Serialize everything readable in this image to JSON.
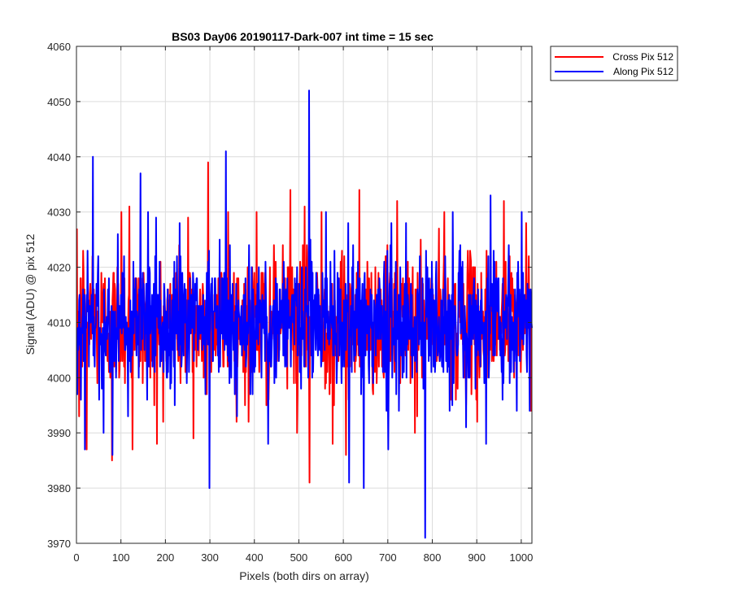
{
  "chart_data": {
    "type": "line",
    "title": "BS03 Day06 20190117-Dark-007 int time = 15 sec",
    "xlabel": "Pixels (both dirs on array)",
    "ylabel": "Signal (ADU) @ pix 512",
    "xlim": [
      0,
      1024
    ],
    "ylim": [
      3970,
      4060
    ],
    "xticks": [
      0,
      100,
      200,
      300,
      400,
      500,
      600,
      700,
      800,
      900,
      1000
    ],
    "yticks": [
      3970,
      3980,
      3990,
      4000,
      4010,
      4020,
      4030,
      4040,
      4050,
      4060
    ],
    "grid": true,
    "legend_position": "outside-top-right",
    "series": [
      {
        "name": "Cross Pix 512",
        "color": "#ff0000",
        "mean": 4010,
        "stddev": 6,
        "points": 1024,
        "extremes": [
          {
            "x": 5,
            "y": 3993
          },
          {
            "x": 14,
            "y": 4023
          },
          {
            "x": 22,
            "y": 3987
          },
          {
            "x": 35,
            "y": 4022
          },
          {
            "x": 79,
            "y": 3985
          },
          {
            "x": 100,
            "y": 4030
          },
          {
            "x": 118,
            "y": 4031
          },
          {
            "x": 125,
            "y": 3987
          },
          {
            "x": 180,
            "y": 3988
          },
          {
            "x": 250,
            "y": 4029
          },
          {
            "x": 262,
            "y": 3989
          },
          {
            "x": 295,
            "y": 4039
          },
          {
            "x": 340,
            "y": 4030
          },
          {
            "x": 386,
            "y": 3992
          },
          {
            "x": 404,
            "y": 4030
          },
          {
            "x": 426,
            "y": 3995
          },
          {
            "x": 480,
            "y": 4034
          },
          {
            "x": 495,
            "y": 3990
          },
          {
            "x": 512,
            "y": 4031
          },
          {
            "x": 523,
            "y": 3981
          },
          {
            "x": 550,
            "y": 4030
          },
          {
            "x": 575,
            "y": 3988
          },
          {
            "x": 605,
            "y": 3986
          },
          {
            "x": 635,
            "y": 4034
          },
          {
            "x": 720,
            "y": 4032
          },
          {
            "x": 760,
            "y": 3990
          },
          {
            "x": 826,
            "y": 4030
          },
          {
            "x": 900,
            "y": 3992
          },
          {
            "x": 960,
            "y": 4032
          },
          {
            "x": 1010,
            "y": 4028
          }
        ]
      },
      {
        "name": "Along Pix 512",
        "color": "#0000ff",
        "mean": 4010,
        "stddev": 6,
        "points": 1024,
        "extremes": [
          {
            "x": 36,
            "y": 4040
          },
          {
            "x": 18,
            "y": 3987
          },
          {
            "x": 60,
            "y": 3990
          },
          {
            "x": 80,
            "y": 3986
          },
          {
            "x": 143,
            "y": 4037
          },
          {
            "x": 160,
            "y": 4030
          },
          {
            "x": 178,
            "y": 4029
          },
          {
            "x": 220,
            "y": 3995
          },
          {
            "x": 298,
            "y": 3980
          },
          {
            "x": 335,
            "y": 4041
          },
          {
            "x": 360,
            "y": 3993
          },
          {
            "x": 430,
            "y": 3988
          },
          {
            "x": 522,
            "y": 4052
          },
          {
            "x": 560,
            "y": 4030
          },
          {
            "x": 612,
            "y": 3981
          },
          {
            "x": 645,
            "y": 3980
          },
          {
            "x": 700,
            "y": 3987
          },
          {
            "x": 740,
            "y": 4028
          },
          {
            "x": 783,
            "y": 3971
          },
          {
            "x": 845,
            "y": 4030
          },
          {
            "x": 875,
            "y": 3991
          },
          {
            "x": 920,
            "y": 3988
          },
          {
            "x": 930,
            "y": 4033
          },
          {
            "x": 1000,
            "y": 4030
          }
        ]
      }
    ]
  }
}
